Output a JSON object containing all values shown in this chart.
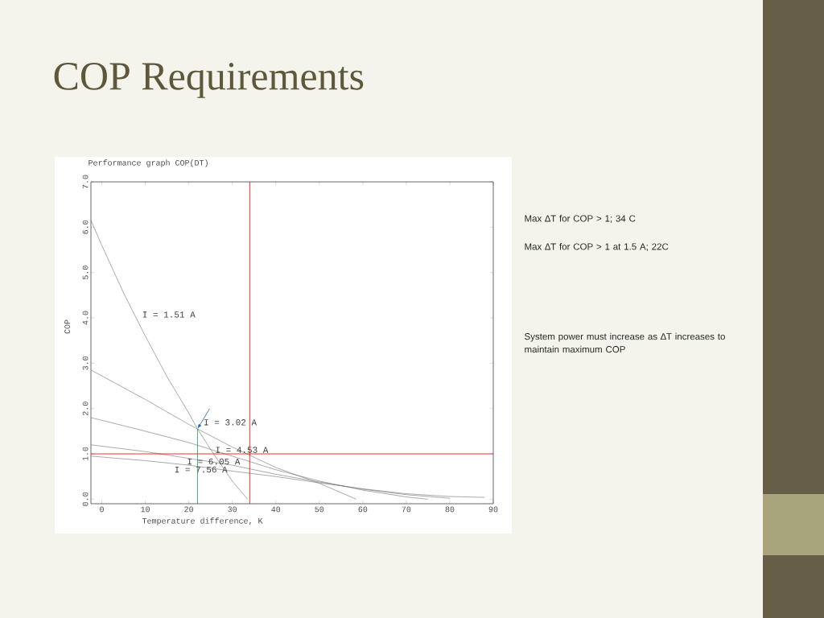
{
  "chart_data": {
    "type": "line",
    "title": "COP Requirements",
    "subtitle": "Performance graph COP(DT)",
    "xlabel": "Temperature difference, K",
    "ylabel": "COP",
    "xlim": [
      -2.5,
      90
    ],
    "ylim": [
      -0.1,
      7.0
    ],
    "xticks": [
      0,
      10,
      20,
      30,
      40,
      50,
      60,
      70,
      80,
      90
    ],
    "yticks": [
      {
        "value": 0,
        "label": "0.0"
      },
      {
        "value": 1,
        "label": "1.0"
      },
      {
        "value": 2,
        "label": "2.0"
      },
      {
        "value": 3,
        "label": "3.0"
      },
      {
        "value": 4,
        "label": "4.0"
      },
      {
        "value": 5,
        "label": "5.0"
      },
      {
        "value": 6,
        "label": "6.0"
      },
      {
        "value": 7,
        "label": "7.0"
      }
    ],
    "grid": false,
    "marker": "none",
    "line_style": "solid",
    "series": [
      {
        "name": "I = 1.51 A",
        "color": "#707070",
        "x": [
          -2.5,
          0,
          5,
          10,
          15,
          20,
          22,
          25,
          30,
          33.5
        ],
        "values": [
          6.15,
          5.6,
          4.55,
          3.6,
          2.7,
          1.9,
          1.55,
          1.1,
          0.4,
          0
        ]
      },
      {
        "name": "I = 3.02 A",
        "color": "#707070",
        "x": [
          -2.5,
          10,
          20,
          30,
          40,
          50,
          58.5
        ],
        "values": [
          2.85,
          2.2,
          1.65,
          1.15,
          0.7,
          0.35,
          0
        ]
      },
      {
        "name": "I = 4.53 A",
        "color": "#707070",
        "x": [
          -2.5,
          10,
          20,
          30,
          40,
          50,
          60,
          70,
          75
        ],
        "values": [
          1.8,
          1.5,
          1.25,
          0.95,
          0.65,
          0.4,
          0.2,
          0.05,
          0
        ]
      },
      {
        "name": "I = 6.05 A",
        "color": "#707070",
        "x": [
          -2.5,
          10,
          20,
          30,
          40,
          50,
          60,
          70,
          80
        ],
        "values": [
          1.2,
          1.05,
          0.9,
          0.75,
          0.55,
          0.38,
          0.22,
          0.1,
          0.02
        ]
      },
      {
        "name": "I = 7.56 A",
        "color": "#707070",
        "x": [
          -2.5,
          10,
          20,
          30,
          40,
          50,
          60,
          70,
          80,
          88
        ],
        "values": [
          0.95,
          0.85,
          0.75,
          0.62,
          0.5,
          0.36,
          0.23,
          0.12,
          0.06,
          0.04
        ]
      },
      {
        "color": "#1aa050",
        "x": [
          22,
          22
        ],
        "values": [
          -0.1,
          1.55
        ]
      }
    ],
    "ref_lines": [
      {
        "axis": "y",
        "value": 1,
        "color": "#e00000"
      },
      {
        "axis": "x",
        "value": 34,
        "color": "#e00000"
      }
    ],
    "annotations": [
      "Max ∆T for COP > 1; 34 C",
      "Max ∆T for COP > 1 at 1.5 A; 22C",
      "System power must increase as ∆T increases to maintain maximum COP"
    ]
  }
}
